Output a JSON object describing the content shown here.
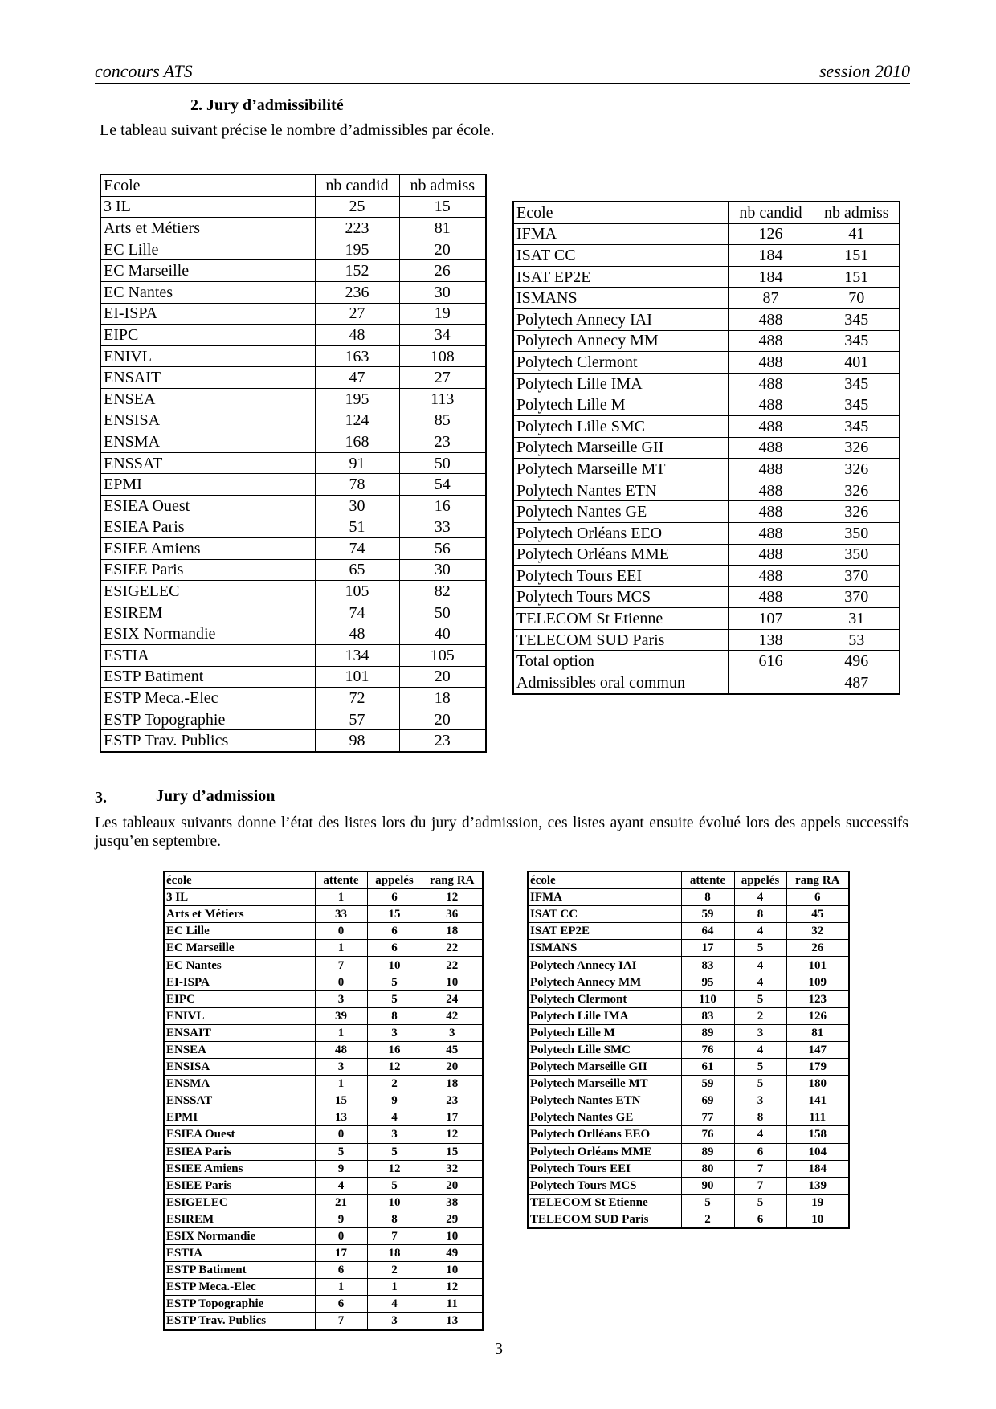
{
  "header": {
    "left": "concours ATS",
    "right": "session 2010"
  },
  "section2": {
    "title": "2.  Jury d’admissibilité",
    "intro": "Le tableau suivant précise le nombre d’admissibles  par école.",
    "table_left": {
      "headers": [
        "Ecole",
        "nb candid",
        "nb admiss"
      ],
      "rows": [
        [
          "3 IL",
          "25",
          "15"
        ],
        [
          "Arts et Métiers",
          "223",
          "81"
        ],
        [
          "EC Lille",
          "195",
          "20"
        ],
        [
          "EC Marseille",
          "152",
          "26"
        ],
        [
          "EC Nantes",
          "236",
          "30"
        ],
        [
          "EI-ISPA",
          "27",
          "19"
        ],
        [
          "EIPC",
          "48",
          "34"
        ],
        [
          "ENIVL",
          "163",
          "108"
        ],
        [
          "ENSAIT",
          "47",
          "27"
        ],
        [
          "ENSEA",
          "195",
          "113"
        ],
        [
          "ENSISA",
          "124",
          "85"
        ],
        [
          "ENSMA",
          "168",
          "23"
        ],
        [
          "ENSSAT",
          "91",
          "50"
        ],
        [
          "EPMI",
          "78",
          "54"
        ],
        [
          "ESIEA Ouest",
          "30",
          "16"
        ],
        [
          "ESIEA Paris",
          "51",
          "33"
        ],
        [
          "ESIEE Amiens",
          "74",
          "56"
        ],
        [
          "ESIEE Paris",
          "65",
          "30"
        ],
        [
          "ESIGELEC",
          "105",
          "82"
        ],
        [
          "ESIREM",
          "74",
          "50"
        ],
        [
          "ESIX Normandie",
          "48",
          "40"
        ],
        [
          "ESTIA",
          "134",
          "105"
        ],
        [
          "ESTP Batiment",
          "101",
          "20"
        ],
        [
          "ESTP Meca.-Elec",
          "72",
          "18"
        ],
        [
          "ESTP Topographie",
          "57",
          "20"
        ],
        [
          "ESTP Trav. Publics",
          "98",
          "23"
        ]
      ]
    },
    "table_right": {
      "headers": [
        "Ecole",
        "nb candid",
        "nb admiss"
      ],
      "rows": [
        [
          "IFMA",
          "126",
          "41"
        ],
        [
          "ISAT CC",
          "184",
          "151"
        ],
        [
          "ISAT EP2E",
          "184",
          "151"
        ],
        [
          "ISMANS",
          "87",
          "70"
        ],
        [
          "Polytech Annecy IAI",
          "488",
          "345"
        ],
        [
          "Polytech Annecy MM",
          "488",
          "345"
        ],
        [
          "Polytech Clermont",
          "488",
          "401"
        ],
        [
          "Polytech Lille IMA",
          "488",
          "345"
        ],
        [
          "Polytech Lille M",
          "488",
          "345"
        ],
        [
          "Polytech Lille SMC",
          "488",
          "345"
        ],
        [
          "Polytech Marseille GII",
          "488",
          "326"
        ],
        [
          "Polytech Marseille MT",
          "488",
          "326"
        ],
        [
          "Polytech Nantes ETN",
          "488",
          "326"
        ],
        [
          "Polytech Nantes GE",
          "488",
          "326"
        ],
        [
          "Polytech Orléans EEO",
          "488",
          "350"
        ],
        [
          "Polytech Orléans MME",
          "488",
          "350"
        ],
        [
          "Polytech Tours EEI",
          "488",
          "370"
        ],
        [
          "Polytech Tours MCS",
          "488",
          "370"
        ],
        [
          "TELECOM St Etienne",
          "107",
          "31"
        ],
        [
          "TELECOM SUD Paris",
          "138",
          "53"
        ],
        [
          "Total option",
          "616",
          "496"
        ],
        [
          "Admissibles oral commun",
          "",
          "487"
        ]
      ]
    }
  },
  "section3": {
    "number": "3.",
    "title": "Jury d’admission",
    "intro": "Les tableaux suivants donne l’état des listes lors du jury d’admission, ces listes ayant ensuite évolué lors des appels successifs jusqu’en septembre.",
    "table_left": {
      "headers": [
        "école",
        "attente",
        "appelés",
        "rang RA"
      ],
      "rows": [
        [
          "3 IL",
          "1",
          "6",
          "12"
        ],
        [
          "Arts et Métiers",
          "33",
          "15",
          "36"
        ],
        [
          "EC Lille",
          "0",
          "6",
          "18"
        ],
        [
          "EC Marseille",
          "1",
          "6",
          "22"
        ],
        [
          "EC Nantes",
          "7",
          "10",
          "22"
        ],
        [
          "EI-ISPA",
          "0",
          "5",
          "10"
        ],
        [
          "EIPC",
          "3",
          "5",
          "24"
        ],
        [
          "ENIVL",
          "39",
          "8",
          "42"
        ],
        [
          "ENSAIT",
          "1",
          "3",
          "3"
        ],
        [
          "ENSEA",
          "48",
          "16",
          "45"
        ],
        [
          "ENSISA",
          "3",
          "12",
          "20"
        ],
        [
          "ENSMA",
          "1",
          "2",
          "18"
        ],
        [
          "ENSSAT",
          "15",
          "9",
          "23"
        ],
        [
          "EPMI",
          "13",
          "4",
          "17"
        ],
        [
          "ESIEA Ouest",
          "0",
          "3",
          "12"
        ],
        [
          "ESIEA Paris",
          "5",
          "5",
          "15"
        ],
        [
          "ESIEE Amiens",
          "9",
          "12",
          "32"
        ],
        [
          "ESIEE Paris",
          "4",
          "5",
          "20"
        ],
        [
          "ESIGELEC",
          "21",
          "10",
          "38"
        ],
        [
          "ESIREM",
          "9",
          "8",
          "29"
        ],
        [
          "ESIX Normandie",
          "0",
          "7",
          "10"
        ],
        [
          "ESTIA",
          "17",
          "18",
          "49"
        ],
        [
          "ESTP Batiment",
          "6",
          "2",
          "10"
        ],
        [
          "ESTP Meca.-Elec",
          "1",
          "1",
          "12"
        ],
        [
          "ESTP Topographie",
          "6",
          "4",
          "11"
        ],
        [
          "ESTP Trav. Publics",
          "7",
          "3",
          "13"
        ]
      ]
    },
    "table_right": {
      "headers": [
        "école",
        "attente",
        "appelés",
        "rang RA"
      ],
      "rows": [
        [
          "IFMA",
          "8",
          "4",
          "6"
        ],
        [
          "ISAT CC",
          "59",
          "8",
          "45"
        ],
        [
          "ISAT EP2E",
          "64",
          "4",
          "32"
        ],
        [
          "ISMANS",
          "17",
          "5",
          "26"
        ],
        [
          "Polytech Annecy IAI",
          "83",
          "4",
          "101"
        ],
        [
          "Polytech Annecy MM",
          "95",
          "4",
          "109"
        ],
        [
          "Polytech Clermont",
          "110",
          "5",
          "123"
        ],
        [
          "Polytech Lille IMA",
          "83",
          "2",
          "126"
        ],
        [
          "Polytech Lille M",
          "89",
          "3",
          "81"
        ],
        [
          "Polytech Lille SMC",
          "76",
          "4",
          "147"
        ],
        [
          "Polytech Marseille GII",
          "61",
          "5",
          "179"
        ],
        [
          "Polytech Marseille MT",
          "59",
          "5",
          "180"
        ],
        [
          "Polytech Nantes ETN",
          "69",
          "3",
          "141"
        ],
        [
          "Polytech Nantes GE",
          "77",
          "8",
          "111"
        ],
        [
          "Polytech Orlléans EEO",
          "76",
          "4",
          "158"
        ],
        [
          "Polytech Orléans MME",
          "89",
          "6",
          "104"
        ],
        [
          "Polytech Tours EEI",
          "80",
          "7",
          "184"
        ],
        [
          "Polytech Tours MCS",
          "90",
          "7",
          "139"
        ],
        [
          "TELECOM St Etienne",
          "5",
          "5",
          "19"
        ],
        [
          "TELECOM SUD Paris",
          "2",
          "6",
          "10"
        ]
      ]
    }
  },
  "footer": {
    "page_number": "3"
  }
}
